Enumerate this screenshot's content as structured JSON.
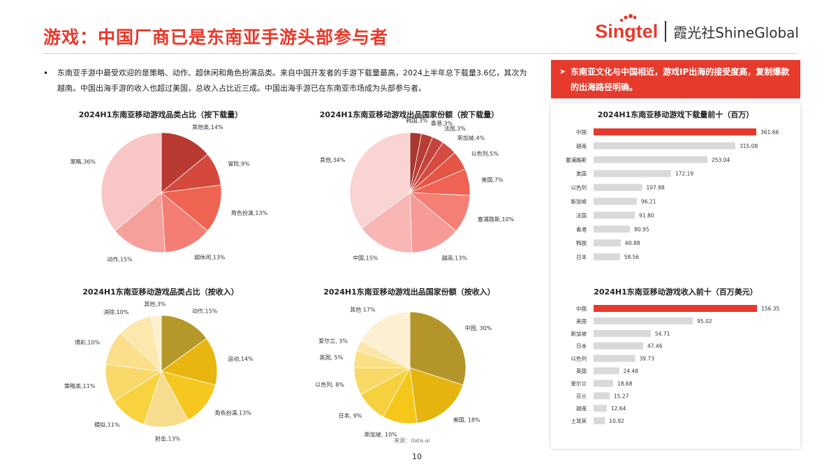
{
  "header": {
    "title": "游戏：中国厂商已是东南亚手游头部参与者",
    "brand_singtel": "Singtel",
    "brand_shine": "霞光社ShineGlobal"
  },
  "bullet": {
    "dot": "•",
    "text": "东南亚手游中最受欢迎的是策略、动作、超休闲和角色扮演品类。来自中国开发者的手游下载量最高，2024上半年总下载量3.6亿，其次为越南。中国出海手游的收入也超过美国，总收入占比近三成。中国出海手游已在东南亚市场成为头部参与者。"
  },
  "callout": {
    "arrow": "➤",
    "text": "东南亚文化与中国相近，游戏IP出海的接受度高，复制爆款的出海路径明确。"
  },
  "footer": {
    "source": "来源：data.ai",
    "page": "10"
  },
  "chart_data": [
    {
      "id": "pie_dl_genre",
      "type": "pie",
      "title": "2024H1东南亚移动游戏品类占比（按下载量）",
      "slices": [
        {
          "label": "其他类,14%",
          "value": 14,
          "color": "#b83a32"
        },
        {
          "label": "冒险,9%",
          "value": 9,
          "color": "#d4493c"
        },
        {
          "label": "角色扮演,13%",
          "value": 13,
          "color": "#ef6351"
        },
        {
          "label": "超休闲,13%",
          "value": 13,
          "color": "#f47e73"
        },
        {
          "label": "动作,15%",
          "value": 15,
          "color": "#f5a09b"
        },
        {
          "label": "策略,36%",
          "value": 36,
          "color": "#f8c6c5"
        }
      ]
    },
    {
      "id": "pie_dl_country",
      "type": "pie",
      "title": "2024H1东南亚移动游戏出品国家份额（按下载量）",
      "slices": [
        {
          "label": "韩国,3%",
          "value": 3,
          "color": "#a8372f"
        },
        {
          "label": "香港,3%",
          "value": 3,
          "color": "#b53d33"
        },
        {
          "label": "法国,3%",
          "value": 3,
          "color": "#c4433a"
        },
        {
          "label": "新加坡,4%",
          "value": 4,
          "color": "#d44b40"
        },
        {
          "label": "以色列,5%",
          "value": 5,
          "color": "#e45547"
        },
        {
          "label": "美国,7%",
          "value": 7,
          "color": "#f06253"
        },
        {
          "label": "塞浦路斯,10%",
          "value": 10,
          "color": "#f47f75"
        },
        {
          "label": "越南,13%",
          "value": 13,
          "color": "#f69b96"
        },
        {
          "label": "中国,15%",
          "value": 15,
          "color": "#f8b6b4"
        },
        {
          "label": "其他,34%",
          "value": 34,
          "color": "#fad3d3"
        }
      ]
    },
    {
      "id": "pie_rev_genre",
      "type": "pie",
      "title": "2024H1东南亚移动游戏品类占比（按收入）",
      "slices": [
        {
          "label": "动作,15%",
          "value": 15,
          "color": "#b5982a"
        },
        {
          "label": "运动,14%",
          "value": 14,
          "color": "#e9b511"
        },
        {
          "label": "角色扮演,13%",
          "value": 13,
          "color": "#f6c81f"
        },
        {
          "label": "射击,13%",
          "value": 13,
          "color": "#f7dc8e"
        },
        {
          "label": "模拟,11%",
          "value": 11,
          "color": "#f9d23f"
        },
        {
          "label": "策略类,11%",
          "value": 11,
          "color": "#f9d86a"
        },
        {
          "label": "博彩,10%",
          "value": 10,
          "color": "#fbdf8a"
        },
        {
          "label": "消除,10%",
          "value": 10,
          "color": "#fce7ac"
        },
        {
          "label": "其他,3%",
          "value": 3,
          "color": "#fdf0cf"
        }
      ]
    },
    {
      "id": "pie_rev_country",
      "type": "pie",
      "title": "2024H1东南亚移动游戏出品国家份额（按收入）",
      "slices": [
        {
          "label": "中国, 30%",
          "value": 30,
          "color": "#b3952a"
        },
        {
          "label": "美国, 18%",
          "value": 18,
          "color": "#e6b40e"
        },
        {
          "label": "新加坡, 10%",
          "value": 10,
          "color": "#f5c71a"
        },
        {
          "label": "日本, 9%",
          "value": 9,
          "color": "#f6d13e"
        },
        {
          "label": "以色列, 8%",
          "value": 8,
          "color": "#f8d966"
        },
        {
          "label": "英国, 5%",
          "value": 5,
          "color": "#fadf85"
        },
        {
          "label": "爱尔兰, 3%",
          "value": 3,
          "color": "#fbe6a6"
        },
        {
          "label": "其他 17%",
          "value": 17,
          "color": "#fcefd2"
        }
      ]
    },
    {
      "id": "bar_dl_top10",
      "type": "bar",
      "orientation": "horizontal",
      "title": "2024H1东南亚移动游戏下载量前十（百万）",
      "categories": [
        "中国",
        "越南",
        "塞浦路斯",
        "美国",
        "以色列",
        "新加坡",
        "法国",
        "香港",
        "韩国",
        "日本"
      ],
      "values": [
        361.66,
        315.08,
        253.04,
        172.19,
        107.88,
        96.21,
        91.8,
        80.95,
        60.88,
        58.56
      ],
      "value_labels": [
        "361.66",
        "315.08",
        "253.04",
        "172.19",
        "107.88",
        "96.21",
        "91.80",
        "80.95",
        "60.88",
        "58.56"
      ],
      "max": 361.66,
      "highlight_color": "#e53a2c",
      "bar_color": "#d9d9d9"
    },
    {
      "id": "bar_rev_top10",
      "type": "bar",
      "orientation": "horizontal",
      "title": "2024H1东南亚移动游戏收入前十（百万美元）",
      "categories": [
        "中国",
        "美国",
        "新加坡",
        "日本",
        "以色列",
        "英国",
        "爱尔兰",
        "芬兰",
        "越南",
        "土耳其"
      ],
      "values": [
        156.35,
        95.02,
        54.71,
        47.46,
        39.73,
        24.48,
        18.68,
        15.27,
        12.64,
        10.92
      ],
      "value_labels": [
        "156.35",
        "95.02",
        "54.71",
        "47.46",
        "39.73",
        "24.48",
        "18.68",
        "15.27",
        "12.64",
        "10.92"
      ],
      "max": 156.35,
      "highlight_color": "#e53a2c",
      "bar_color": "#d9d9d9"
    }
  ]
}
